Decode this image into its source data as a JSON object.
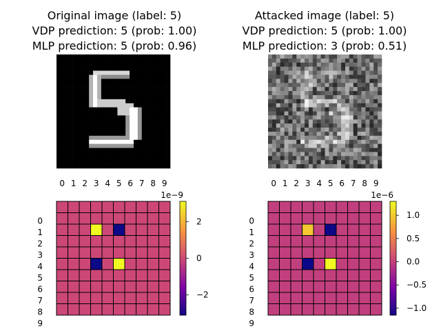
{
  "panels": [
    {
      "title_lines": [
        "Original image (label: 5)",
        "VDP prediction: 5 (prob: 1.00)",
        "MLP prediction: 5 (prob: 0.96)"
      ],
      "image": {
        "kind": "digit",
        "digit": "5"
      }
    },
    {
      "title_lines": [
        "Attacked image (label: 5)",
        "VDP prediction: 5 (prob: 1.00)",
        "MLP prediction: 3 (prob: 0.51)"
      ],
      "image": {
        "kind": "noise",
        "digit": "5"
      }
    }
  ],
  "chart_data": [
    {
      "type": "heatmap",
      "x_ticks": [
        "0",
        "1",
        "2",
        "3",
        "4",
        "5",
        "6",
        "7",
        "8",
        "9"
      ],
      "y_ticks": [
        "0",
        "1",
        "2",
        "3",
        "4",
        "5",
        "6",
        "7",
        "8",
        "9"
      ],
      "colormap": "plasma",
      "scale_label": "1e−9",
      "vmin": -3.1,
      "vmax": 3.1,
      "colorbar_ticks": [
        {
          "value": 2,
          "label": "2"
        },
        {
          "value": 0,
          "label": "0"
        },
        {
          "value": -2,
          "label": "−2"
        }
      ],
      "background_value": 0,
      "cells": [
        {
          "row": 2,
          "col": 3,
          "value": 3.1
        },
        {
          "row": 2,
          "col": 5,
          "value": -3.1
        },
        {
          "row": 5,
          "col": 3,
          "value": -3.1
        },
        {
          "row": 5,
          "col": 5,
          "value": 3.1
        }
      ]
    },
    {
      "type": "heatmap",
      "x_ticks": [
        "0",
        "1",
        "2",
        "3",
        "4",
        "5",
        "6",
        "7",
        "8",
        "9"
      ],
      "y_ticks": [
        "0",
        "1",
        "2",
        "3",
        "4",
        "5",
        "6",
        "7",
        "8",
        "9"
      ],
      "colormap": "plasma",
      "scale_label": "1e−6",
      "vmin": -1.15,
      "vmax": 1.3,
      "colorbar_ticks": [
        {
          "value": 1.0,
          "label": "1.0"
        },
        {
          "value": 0.5,
          "label": "0.5"
        },
        {
          "value": 0.0,
          "label": "0.0"
        },
        {
          "value": -0.5,
          "label": "−0.5"
        },
        {
          "value": -1.0,
          "label": "−1.0"
        }
      ],
      "background_value": 0,
      "cells": [
        {
          "row": 2,
          "col": 3,
          "value": 1.0
        },
        {
          "row": 2,
          "col": 5,
          "value": -1.15
        },
        {
          "row": 5,
          "col": 3,
          "value": -1.15
        },
        {
          "row": 5,
          "col": 5,
          "value": 1.3
        }
      ]
    }
  ]
}
